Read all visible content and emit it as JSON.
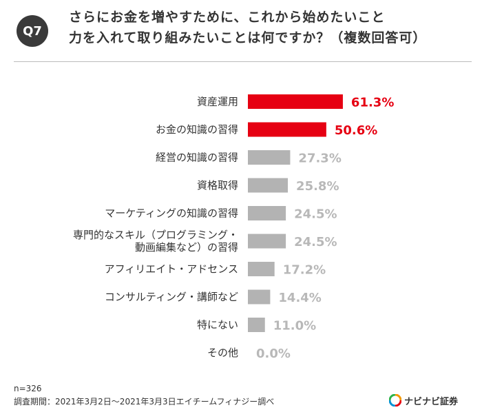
{
  "header": {
    "badge": "Q7",
    "question_line1": "さらにお金を増やすために、これから始めたいこと",
    "question_line2": "力を入れて取り組みたいことは何ですか？（複数回答可）"
  },
  "chart_data": {
    "type": "bar",
    "orientation": "horizontal",
    "categories": [
      [
        "資産運用"
      ],
      [
        "お金の知識の習得"
      ],
      [
        "経営の知識の習得"
      ],
      [
        "資格取得"
      ],
      [
        "マーケティングの知識の習得"
      ],
      [
        "専門的なスキル（プログラミング・",
        "動画編集など）の習得"
      ],
      [
        "アフィリエイト・アドセンス"
      ],
      [
        "コンサルティング・講師など"
      ],
      [
        "特にない"
      ],
      [
        "その他"
      ]
    ],
    "values": [
      61.3,
      50.6,
      27.3,
      25.8,
      24.5,
      24.5,
      17.2,
      14.4,
      11.0,
      0.0
    ],
    "value_labels": [
      "61.3%",
      "50.6%",
      "27.3%",
      "25.8%",
      "24.5%",
      "24.5%",
      "17.2%",
      "14.4%",
      "11.0%",
      "0.0%"
    ],
    "highlight_count": 2,
    "highlight_color": "#e60012",
    "base_color": "#b3b3b3",
    "label_color_highlight": "#e60012",
    "label_color_base": "#b8b8b8",
    "xlim": [
      0,
      100
    ],
    "grid": false
  },
  "footer": {
    "sample": "n=326",
    "source": "調査期間：2021年3月2日～2021年3月3日エイチームフィナジー調べ",
    "logo_text": "ナビナビ証券"
  }
}
